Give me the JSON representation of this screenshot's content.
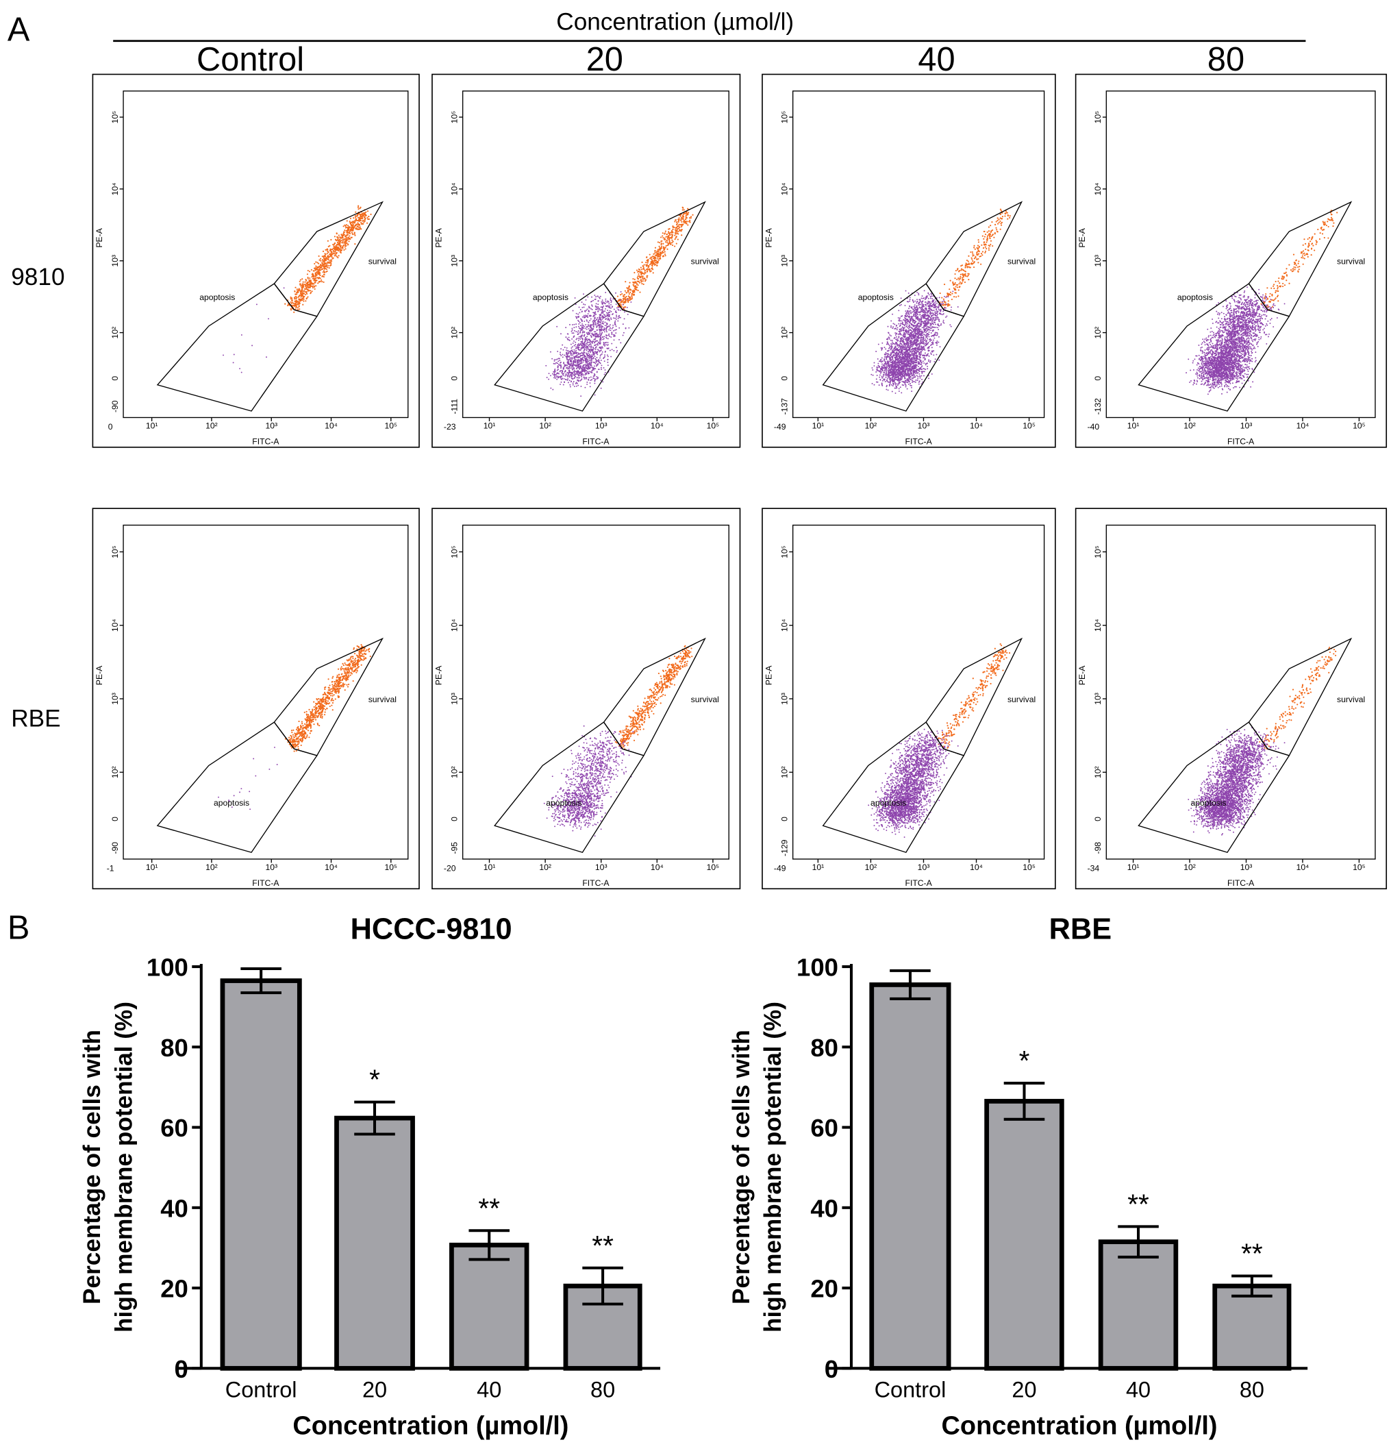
{
  "panel_labels": {
    "a": "A",
    "b": "B"
  },
  "flow": {
    "header": "Concentration (µmol/l)",
    "columns": [
      "Control",
      "20",
      "40",
      "80"
    ],
    "rows": [
      "9810",
      "RBE"
    ],
    "y_axis_label": "PE-A",
    "x_axis_label": "FITC-A",
    "gate_labels": {
      "apoptosis": "apoptosis",
      "survival": "survival"
    },
    "x_ticks": [
      "10¹",
      "10²",
      "10³",
      "10⁴",
      "10⁵"
    ],
    "y_ticks": [
      "10²",
      "10³",
      "10⁴",
      "10⁵"
    ],
    "zero_label": "0",
    "x_min_labels": [
      [
        "0",
        "-23",
        "-49",
        "-40"
      ],
      [
        "-1",
        "-20",
        "-49",
        "-34"
      ]
    ],
    "y_min_labels": [
      [
        "-90",
        "-111",
        "-137",
        "-132"
      ],
      [
        "-90",
        "-95",
        "-129",
        "-98"
      ]
    ],
    "colors": {
      "survival": "#f26a1b",
      "apoptosis": "#8e44ad"
    }
  },
  "chart_data": [
    {
      "type": "bar",
      "title": "HCCC-9810",
      "categories": [
        "Control",
        "20",
        "40",
        "80"
      ],
      "values": [
        96.5,
        62.3,
        30.7,
        20.5
      ],
      "errors": [
        3.0,
        4.0,
        3.6,
        4.5
      ],
      "significance": [
        "",
        "*",
        "**",
        "**"
      ],
      "xlabel": "Concentration (µmol/l)",
      "ylabel_lines": [
        "Percentage of cells with",
        "high membrane potential (%)"
      ],
      "yticks": [
        "0",
        "20",
        "40",
        "60",
        "80",
        "100"
      ],
      "ylim": [
        0,
        100
      ],
      "bar_color": "#a3a3a8"
    },
    {
      "type": "bar",
      "title": "RBE",
      "categories": [
        "Control",
        "20",
        "40",
        "80"
      ],
      "values": [
        95.5,
        66.5,
        31.5,
        20.5
      ],
      "errors": [
        3.5,
        4.5,
        3.8,
        2.5
      ],
      "significance": [
        "",
        "*",
        "**",
        "**"
      ],
      "xlabel": "Concentration (µmol/l)",
      "ylabel_lines": [
        "Percentage of cells with",
        "high membrane potential (%)"
      ],
      "yticks": [
        "0",
        "20",
        "40",
        "60",
        "80",
        "100"
      ],
      "ylim": [
        0,
        100
      ],
      "bar_color": "#a3a3a8"
    }
  ]
}
